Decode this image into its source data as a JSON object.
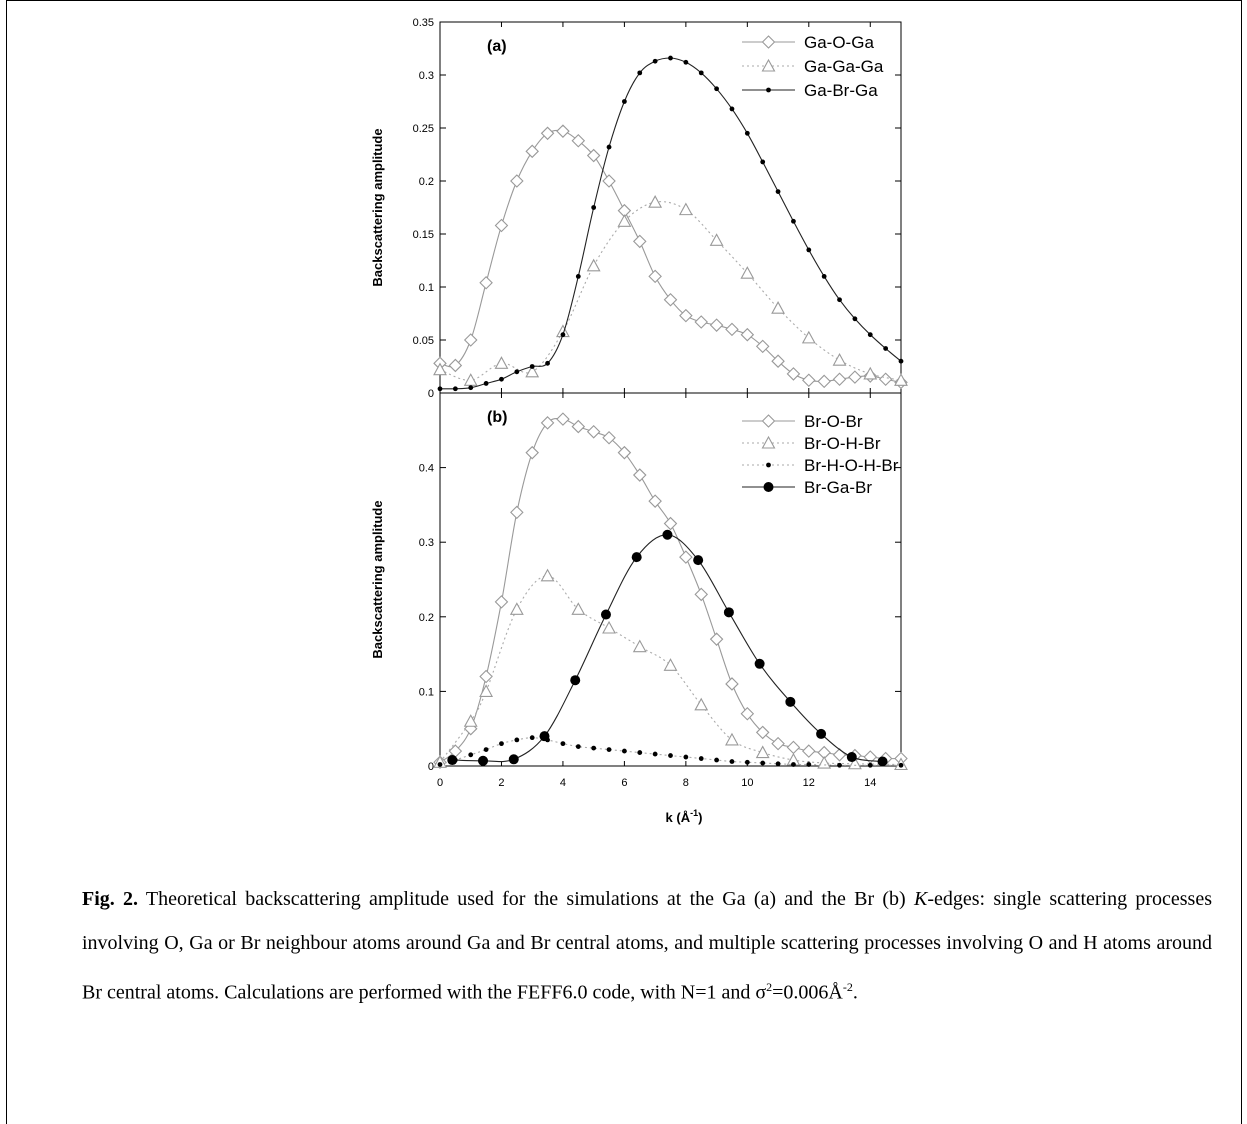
{
  "chart_data": [
    {
      "panel": "(a)",
      "type": "line",
      "ylabel": "Backscattering amplitude",
      "xlim": [
        0,
        15
      ],
      "ylim": [
        0,
        0.35
      ],
      "yticks": [
        "0",
        "0.05",
        "0.1",
        "0.15",
        "0.2",
        "0.25",
        "0.3",
        "0.35"
      ],
      "legend_position": "top-right",
      "series": [
        {
          "name": "Ga-O-Ga",
          "marker": "diamond-open",
          "line": "solid",
          "points": [
            [
              0,
              0.028
            ],
            [
              0.5,
              0.026
            ],
            [
              1,
              0.05
            ],
            [
              1.5,
              0.104
            ],
            [
              2,
              0.158
            ],
            [
              2.5,
              0.2
            ],
            [
              3,
              0.228
            ],
            [
              3.5,
              0.245
            ],
            [
              4,
              0.247
            ],
            [
              4.5,
              0.238
            ],
            [
              5,
              0.224
            ],
            [
              5.5,
              0.2
            ],
            [
              6,
              0.172
            ],
            [
              6.5,
              0.143
            ],
            [
              7,
              0.11
            ],
            [
              7.5,
              0.088
            ],
            [
              8,
              0.073
            ],
            [
              8.5,
              0.067
            ],
            [
              9,
              0.064
            ],
            [
              9.5,
              0.06
            ],
            [
              10,
              0.055
            ],
            [
              10.5,
              0.044
            ],
            [
              11,
              0.03
            ],
            [
              11.5,
              0.018
            ],
            [
              12,
              0.012
            ],
            [
              12.5,
              0.011
            ],
            [
              13,
              0.013
            ],
            [
              13.5,
              0.015
            ],
            [
              14,
              0.016
            ],
            [
              14.5,
              0.013
            ],
            [
              15,
              0.01
            ]
          ]
        },
        {
          "name": "Ga-Ga-Ga",
          "marker": "triangle-open",
          "line": "dotted",
          "points": [
            [
              0,
              0.022
            ],
            [
              1,
              0.012
            ],
            [
              2,
              0.028
            ],
            [
              3,
              0.02
            ],
            [
              4,
              0.058
            ],
            [
              5,
              0.12
            ],
            [
              6,
              0.162
            ],
            [
              7,
              0.18
            ],
            [
              8,
              0.173
            ],
            [
              9,
              0.144
            ],
            [
              10,
              0.113
            ],
            [
              11,
              0.08
            ],
            [
              12,
              0.052
            ],
            [
              13,
              0.031
            ],
            [
              14,
              0.018
            ],
            [
              15,
              0.012
            ]
          ]
        },
        {
          "name": "Ga-Br-Ga",
          "marker": "dot-small",
          "line": "solid",
          "points": [
            [
              0,
              0.004
            ],
            [
              0.5,
              0.004
            ],
            [
              1,
              0.005
            ],
            [
              1.5,
              0.009
            ],
            [
              2,
              0.013
            ],
            [
              2.5,
              0.02
            ],
            [
              3,
              0.025
            ],
            [
              3.5,
              0.028
            ],
            [
              4,
              0.055
            ],
            [
              4.5,
              0.11
            ],
            [
              5,
              0.175
            ],
            [
              5.5,
              0.232
            ],
            [
              6,
              0.275
            ],
            [
              6.5,
              0.302
            ],
            [
              7,
              0.313
            ],
            [
              7.5,
              0.316
            ],
            [
              8,
              0.312
            ],
            [
              8.5,
              0.302
            ],
            [
              9,
              0.287
            ],
            [
              9.5,
              0.268
            ],
            [
              10,
              0.245
            ],
            [
              10.5,
              0.218
            ],
            [
              11,
              0.19
            ],
            [
              11.5,
              0.162
            ],
            [
              12,
              0.135
            ],
            [
              12.5,
              0.11
            ],
            [
              13,
              0.088
            ],
            [
              13.5,
              0.07
            ],
            [
              14,
              0.055
            ],
            [
              14.5,
              0.042
            ],
            [
              15,
              0.03
            ]
          ]
        }
      ]
    },
    {
      "panel": "(b)",
      "type": "line",
      "ylabel": "Backscattering amplitude",
      "xlabel": "k (Å",
      "xlabel_sup": "-1",
      "xlabel_close": ")",
      "xlim": [
        0,
        15
      ],
      "ylim": [
        0,
        0.5
      ],
      "xticks": [
        "0",
        "2",
        "4",
        "6",
        "8",
        "10",
        "12",
        "14"
      ],
      "yticks": [
        "0",
        "0.1",
        "0.2",
        "0.3",
        "0.4"
      ],
      "legend_position": "top-right",
      "series": [
        {
          "name": "Br-O-Br",
          "marker": "diamond-open",
          "line": "solid",
          "points": [
            [
              0,
              0.005
            ],
            [
              0.5,
              0.02
            ],
            [
              1,
              0.05
            ],
            [
              1.5,
              0.12
            ],
            [
              2,
              0.22
            ],
            [
              2.5,
              0.34
            ],
            [
              3,
              0.42
            ],
            [
              3.5,
              0.46
            ],
            [
              4,
              0.465
            ],
            [
              4.5,
              0.455
            ],
            [
              5,
              0.448
            ],
            [
              5.5,
              0.44
            ],
            [
              6,
              0.42
            ],
            [
              6.5,
              0.39
            ],
            [
              7,
              0.355
            ],
            [
              7.5,
              0.325
            ],
            [
              8,
              0.28
            ],
            [
              8.5,
              0.23
            ],
            [
              9,
              0.17
            ],
            [
              9.5,
              0.11
            ],
            [
              10,
              0.07
            ],
            [
              10.5,
              0.045
            ],
            [
              11,
              0.03
            ],
            [
              11.5,
              0.025
            ],
            [
              12,
              0.02
            ],
            [
              12.5,
              0.018
            ],
            [
              13,
              0.015
            ],
            [
              13.5,
              0.014
            ],
            [
              14,
              0.012
            ],
            [
              14.5,
              0.01
            ],
            [
              15,
              0.01
            ]
          ]
        },
        {
          "name": "Br-O-H-Br",
          "marker": "triangle-open",
          "line": "dotted",
          "points": [
            [
              0,
              0.005
            ],
            [
              1,
              0.06
            ],
            [
              1.5,
              0.1
            ],
            [
              2.5,
              0.21
            ],
            [
              3.5,
              0.255
            ],
            [
              4.5,
              0.21
            ],
            [
              5.5,
              0.185
            ],
            [
              6.5,
              0.16
            ],
            [
              7.5,
              0.135
            ],
            [
              8.5,
              0.082
            ],
            [
              9.5,
              0.035
            ],
            [
              10.5,
              0.018
            ],
            [
              11.5,
              0.008
            ],
            [
              12.5,
              0.004
            ],
            [
              13.5,
              0.003
            ],
            [
              15,
              0.002
            ]
          ]
        },
        {
          "name": "Br-H-O-H-Br",
          "marker": "dot-small",
          "line": "dotted",
          "points": [
            [
              0,
              0.002
            ],
            [
              0.5,
              0.008
            ],
            [
              1,
              0.015
            ],
            [
              1.5,
              0.022
            ],
            [
              2,
              0.03
            ],
            [
              2.5,
              0.035
            ],
            [
              3,
              0.038
            ],
            [
              3.5,
              0.035
            ],
            [
              4,
              0.03
            ],
            [
              4.5,
              0.026
            ],
            [
              5,
              0.024
            ],
            [
              5.5,
              0.022
            ],
            [
              6,
              0.02
            ],
            [
              6.5,
              0.018
            ],
            [
              7,
              0.016
            ],
            [
              7.5,
              0.014
            ],
            [
              8,
              0.012
            ],
            [
              8.5,
              0.01
            ],
            [
              9,
              0.008
            ],
            [
              9.5,
              0.006
            ],
            [
              10,
              0.005
            ],
            [
              10.5,
              0.004
            ],
            [
              11,
              0.003
            ],
            [
              11.5,
              0.002
            ],
            [
              12,
              0.002
            ],
            [
              13,
              0.001
            ],
            [
              14,
              0.001
            ],
            [
              15,
              0.001
            ]
          ]
        },
        {
          "name": "Br-Ga-Br",
          "marker": "dot-large",
          "line": "solid",
          "points": [
            [
              0.4,
              0.008
            ],
            [
              1.4,
              0.007
            ],
            [
              2.4,
              0.009
            ],
            [
              3.4,
              0.04
            ],
            [
              4.4,
              0.115
            ],
            [
              5.4,
              0.203
            ],
            [
              6.4,
              0.28
            ],
            [
              7.4,
              0.31
            ],
            [
              8.4,
              0.276
            ],
            [
              9.4,
              0.206
            ],
            [
              10.4,
              0.137
            ],
            [
              11.4,
              0.086
            ],
            [
              12.4,
              0.043
            ],
            [
              13.4,
              0.012
            ],
            [
              14.4,
              0.006
            ]
          ]
        }
      ]
    }
  ],
  "caption": {
    "label": "Fig. 2.",
    "text_1": " Theoretical backscattering amplitude used for the simulations at the Ga (a) and the Br (b) ",
    "k_italic": "K",
    "text_2": "-edges: single scattering processes involving O, Ga or Br neighbour atoms around Ga and Br central atoms, and multiple scattering processes involving O and H atoms around Br central atoms. Calculations are performed with the FEFF6.0 code, with N=1 and σ",
    "sup_1": "2",
    "text_3": "=0.006Å",
    "sup_2": "-2",
    "text_4": "."
  }
}
